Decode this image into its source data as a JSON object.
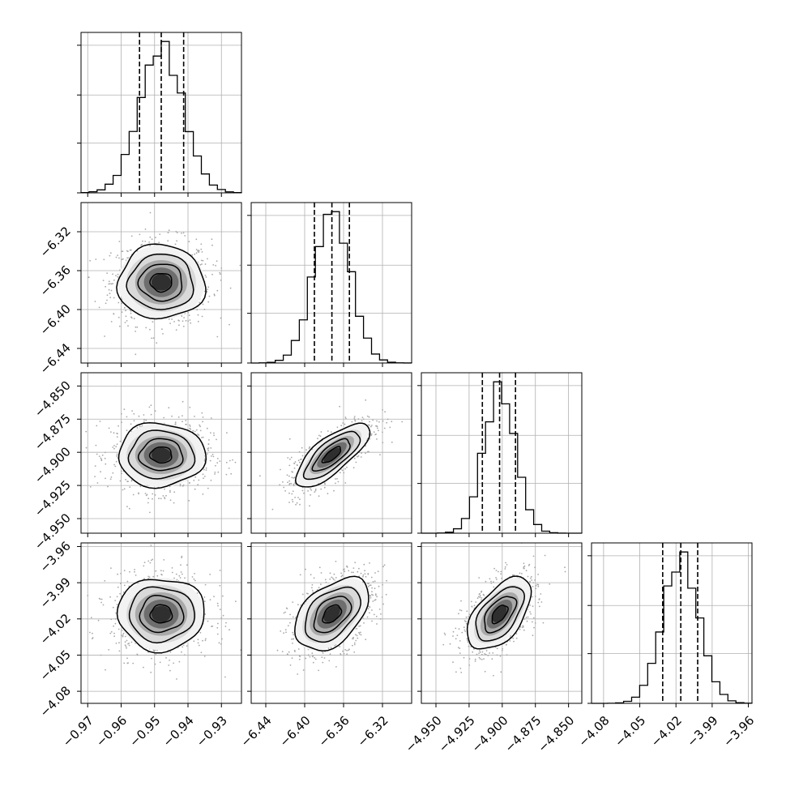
{
  "chart_data": {
    "type": "corner",
    "parameters": [
      {
        "mean": -0.948,
        "sd": 0.0065,
        "range": [
          -0.972,
          -0.924
        ],
        "quantiles": [
          -0.9545,
          -0.948,
          -0.9413
        ],
        "ticks": [
          -0.97,
          -0.96,
          -0.95,
          -0.94,
          -0.93
        ],
        "tick_labels": [
          "−0.97",
          "−0.96",
          "−0.95",
          "−0.94",
          "−0.93"
        ]
      },
      {
        "mean": -6.372,
        "sd": 0.019,
        "range": [
          -6.455,
          -6.29
        ],
        "quantiles": [
          -6.39,
          -6.372,
          -6.354
        ],
        "ticks": [
          -6.44,
          -6.4,
          -6.36,
          -6.32
        ],
        "tick_labels": [
          "−6.44",
          "−6.40",
          "−6.36",
          "−6.32"
        ]
      },
      {
        "mean": -4.902,
        "sd": 0.012,
        "range": [
          -4.961,
          -4.84
        ],
        "quantiles": [
          -4.915,
          -4.902,
          -4.89
        ],
        "ticks": [
          -4.95,
          -4.925,
          -4.9,
          -4.875,
          -4.85
        ],
        "tick_labels": [
          "−4.950",
          "−4.925",
          "−4.900",
          "−4.875",
          "−4.850"
        ]
      },
      {
        "mean": -4.016,
        "sd": 0.015,
        "range": [
          -4.09,
          -3.957
        ],
        "quantiles": [
          -4.031,
          -4.016,
          -4.002
        ],
        "ticks": [
          -4.08,
          -4.05,
          -4.02,
          -3.99,
          -3.96
        ],
        "tick_labels": [
          "−4.08",
          "−4.05",
          "−4.02",
          "−3.99",
          "−3.96"
        ]
      }
    ],
    "correlations": [
      [
        1,
        0,
        0,
        0
      ],
      [
        0,
        1,
        0.75,
        0.45
      ],
      [
        0,
        0.75,
        1,
        0.55
      ],
      [
        0,
        0.45,
        0.55,
        1
      ]
    ],
    "histogram_bins": 20,
    "contour_levels": [
      0.5,
      1,
      1.5,
      2
    ],
    "quantile_lines": "dashed",
    "grid": true
  }
}
